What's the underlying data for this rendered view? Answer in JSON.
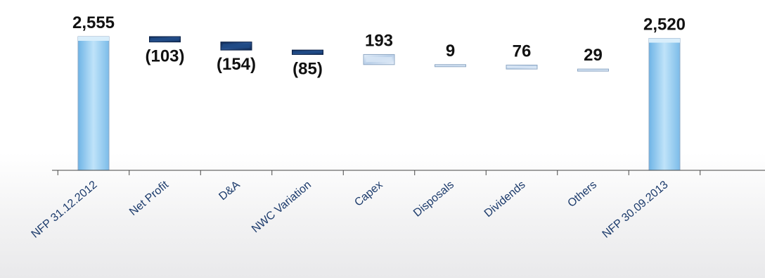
{
  "chart_data": {
    "type": "bar",
    "subtype": "waterfall",
    "categories": [
      "NFP 31.12.2012",
      "Net Profit",
      "D&A",
      "NWC Variation",
      "Capex",
      "Disposals",
      "Dividends",
      "Others",
      "NFP 30.09.2013"
    ],
    "values": [
      2555,
      -103,
      -154,
      -85,
      193,
      9,
      76,
      29,
      2520
    ],
    "labels": [
      "2,555",
      "(103)",
      "(154)",
      "(85)",
      "193",
      "9",
      "76",
      "29",
      "2,520"
    ],
    "bar_kind": [
      "total",
      "decrease",
      "decrease",
      "decrease",
      "increase",
      "increase",
      "increase",
      "increase",
      "total"
    ],
    "title": "",
    "xlabel": "",
    "ylabel": "",
    "grid": false,
    "legend": "none",
    "colors": {
      "total": "#9fcfef",
      "decrease": "#1c3f74",
      "increase": "#c9dbee",
      "axis": "#444444",
      "label": "#1b3a6b"
    }
  }
}
